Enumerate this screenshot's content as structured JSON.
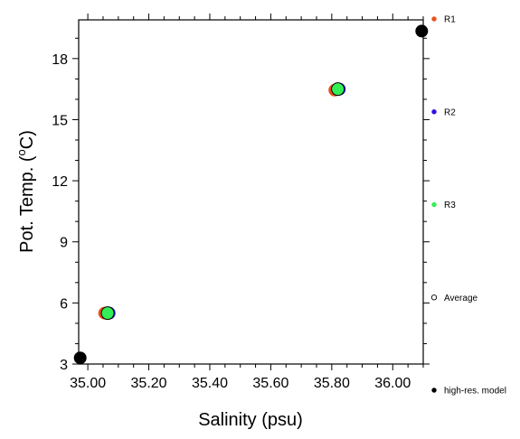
{
  "chart_data": {
    "type": "scatter",
    "xlabel": "Salinity (psu)",
    "ylabel_main": "Pot. Temp. (",
    "ylabel_degree": "o",
    "ylabel_tail": "C)",
    "xlim": [
      34.97,
      36.1
    ],
    "ylim": [
      3.0,
      19.9
    ],
    "xticks": [
      35.0,
      35.2,
      35.4,
      35.6,
      35.8,
      36.0
    ],
    "xtick_labels": [
      "35.00",
      "35.20",
      "35.40",
      "35.60",
      "35.80",
      "36.00"
    ],
    "yticks": [
      3,
      6,
      9,
      12,
      15,
      18
    ],
    "ytick_labels": [
      "3",
      "6",
      "9",
      "12",
      "15",
      "18"
    ],
    "legend_position": "right",
    "series": [
      {
        "name": "R1",
        "color": "#e8521c",
        "marker": "filled-circle",
        "points": [
          {
            "x": 35.055,
            "y": 5.5
          },
          {
            "x": 35.81,
            "y": 16.45
          }
        ]
      },
      {
        "name": "R2",
        "color": "#2d0ee6",
        "marker": "filled-circle",
        "points": [
          {
            "x": 35.07,
            "y": 5.5
          },
          {
            "x": 35.825,
            "y": 16.5
          }
        ]
      },
      {
        "name": "R3",
        "color": "#33ee55",
        "marker": "filled-circle",
        "points": [
          {
            "x": 35.065,
            "y": 5.5
          },
          {
            "x": 35.82,
            "y": 16.5
          }
        ]
      },
      {
        "name": "Average",
        "color": "#000000",
        "marker": "open-circle",
        "points": [
          {
            "x": 35.065,
            "y": 5.5
          },
          {
            "x": 35.82,
            "y": 16.5
          }
        ]
      },
      {
        "name": "high-res. model",
        "color": "#000000",
        "marker": "filled-circle",
        "points": [
          {
            "x": 34.975,
            "y": 3.3
          },
          {
            "x": 36.095,
            "y": 19.35
          }
        ]
      }
    ]
  }
}
